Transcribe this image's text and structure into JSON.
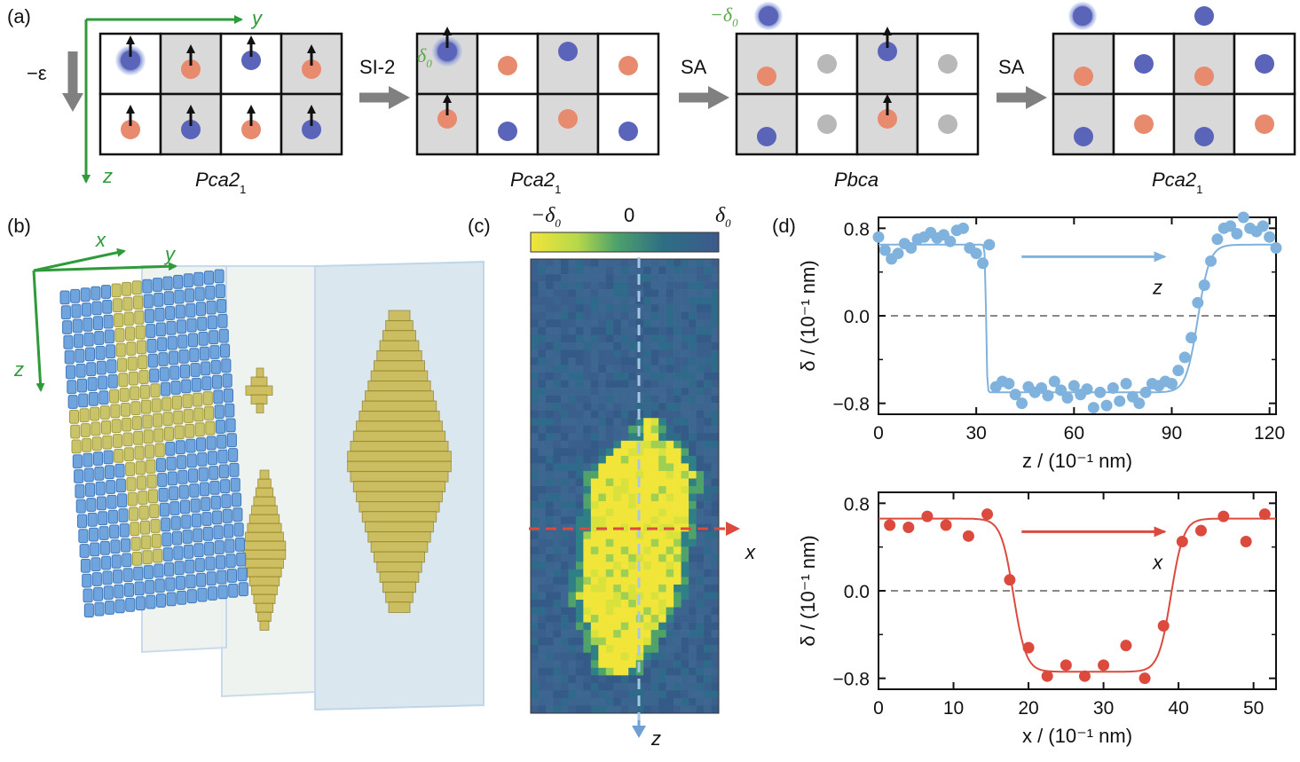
{
  "panels": {
    "a": {
      "label": "(a)",
      "strain": "−ε",
      "axis_y": "y",
      "axis_z": "z",
      "steps": [
        {
          "arrow": "SI-2"
        },
        {
          "arrow": "SA"
        },
        {
          "arrow": "SA"
        }
      ],
      "stages": [
        {
          "group": "Pca2",
          "sub": "1"
        },
        {
          "group": "Pca2",
          "sub": "1"
        },
        {
          "group": "Pbca",
          "sub": ""
        },
        {
          "group": "Pca2",
          "sub": "1"
        }
      ],
      "delta0": "δ",
      "delta0_sub": "0",
      "minus_delta0": "−δ",
      "minus_delta0_sub": "0",
      "colors": {
        "blue_atom": "#5a64b8",
        "red_atom": "#e88a6e",
        "gray_atom": "#b8b8b8",
        "shaded_cell": "#d9d9d9"
      }
    },
    "b": {
      "label": "(b)",
      "axis_x": "x",
      "axis_y": "y",
      "axis_z": "z"
    },
    "c": {
      "label": "(c)",
      "cbar_min": "−δ",
      "cbar_min_sub": "0",
      "cbar_mid": "0",
      "cbar_max": "δ",
      "cbar_max_sub": "0",
      "axis_x": "x",
      "axis_z": "z"
    },
    "d": {
      "label": "(d)"
    }
  },
  "chart_data": [
    {
      "type": "scatter",
      "xlabel": "z / (10⁻¹ nm)",
      "ylabel": "δ / (10⁻¹ nm)",
      "xlim": [
        0,
        122
      ],
      "ylim": [
        -0.9,
        0.9
      ],
      "xticks": [
        "0",
        "30",
        "60",
        "90",
        "120"
      ],
      "yticks": [
        "−0.8",
        "0.0",
        "0.8"
      ],
      "arrow_label": "z",
      "color": "#7fb2dd",
      "points_x": [
        0,
        2,
        4,
        6,
        8,
        10,
        12,
        14,
        16,
        18,
        20,
        22,
        24,
        26,
        28,
        30,
        32,
        34,
        36,
        38,
        40,
        42,
        44,
        46,
        48,
        50,
        52,
        54,
        56,
        58,
        60,
        62,
        64,
        66,
        68,
        70,
        72,
        74,
        76,
        78,
        80,
        82,
        84,
        86,
        88,
        90,
        92,
        94,
        96,
        98,
        100,
        102,
        104,
        106,
        108,
        110,
        112,
        114,
        116,
        118,
        120,
        122
      ],
      "points_y": [
        0.72,
        0.6,
        0.52,
        0.57,
        0.66,
        0.62,
        0.7,
        0.72,
        0.76,
        0.71,
        0.74,
        0.68,
        0.78,
        0.8,
        0.62,
        0.57,
        0.48,
        0.65,
        -0.65,
        -0.6,
        -0.62,
        -0.72,
        -0.8,
        -0.65,
        -0.7,
        -0.66,
        -0.73,
        -0.6,
        -0.68,
        -0.75,
        -0.64,
        -0.72,
        -0.67,
        -0.84,
        -0.7,
        -0.82,
        -0.66,
        -0.78,
        -0.62,
        -0.74,
        -0.8,
        -0.7,
        -0.62,
        -0.64,
        -0.6,
        -0.62,
        -0.5,
        -0.38,
        -0.2,
        0.12,
        0.28,
        0.5,
        0.7,
        0.8,
        0.82,
        0.75,
        0.9,
        0.8,
        0.77,
        0.82,
        0.72,
        0.62
      ],
      "fit": "step"
    },
    {
      "type": "scatter",
      "xlabel": "x / (10⁻¹ nm)",
      "ylabel": "δ / (10⁻¹ nm)",
      "xlim": [
        0,
        53
      ],
      "ylim": [
        -0.9,
        0.9
      ],
      "xticks": [
        "0",
        "10",
        "20",
        "30",
        "40",
        "50"
      ],
      "yticks": [
        "−0.8",
        "0.0",
        "0.8"
      ],
      "arrow_label": "x",
      "color": "#dc4a3e",
      "points_x": [
        1.5,
        4,
        6.5,
        9,
        12,
        14.5,
        17.5,
        20,
        22.5,
        25,
        27.5,
        30,
        33,
        35.5,
        38,
        40.5,
        43,
        46,
        49,
        51.5
      ],
      "points_y": [
        0.6,
        0.58,
        0.68,
        0.6,
        0.5,
        0.7,
        0.1,
        -0.52,
        -0.78,
        -0.68,
        -0.78,
        -0.68,
        -0.5,
        -0.8,
        -0.32,
        0.45,
        0.55,
        0.68,
        0.45,
        0.7
      ],
      "fit": "well"
    }
  ]
}
